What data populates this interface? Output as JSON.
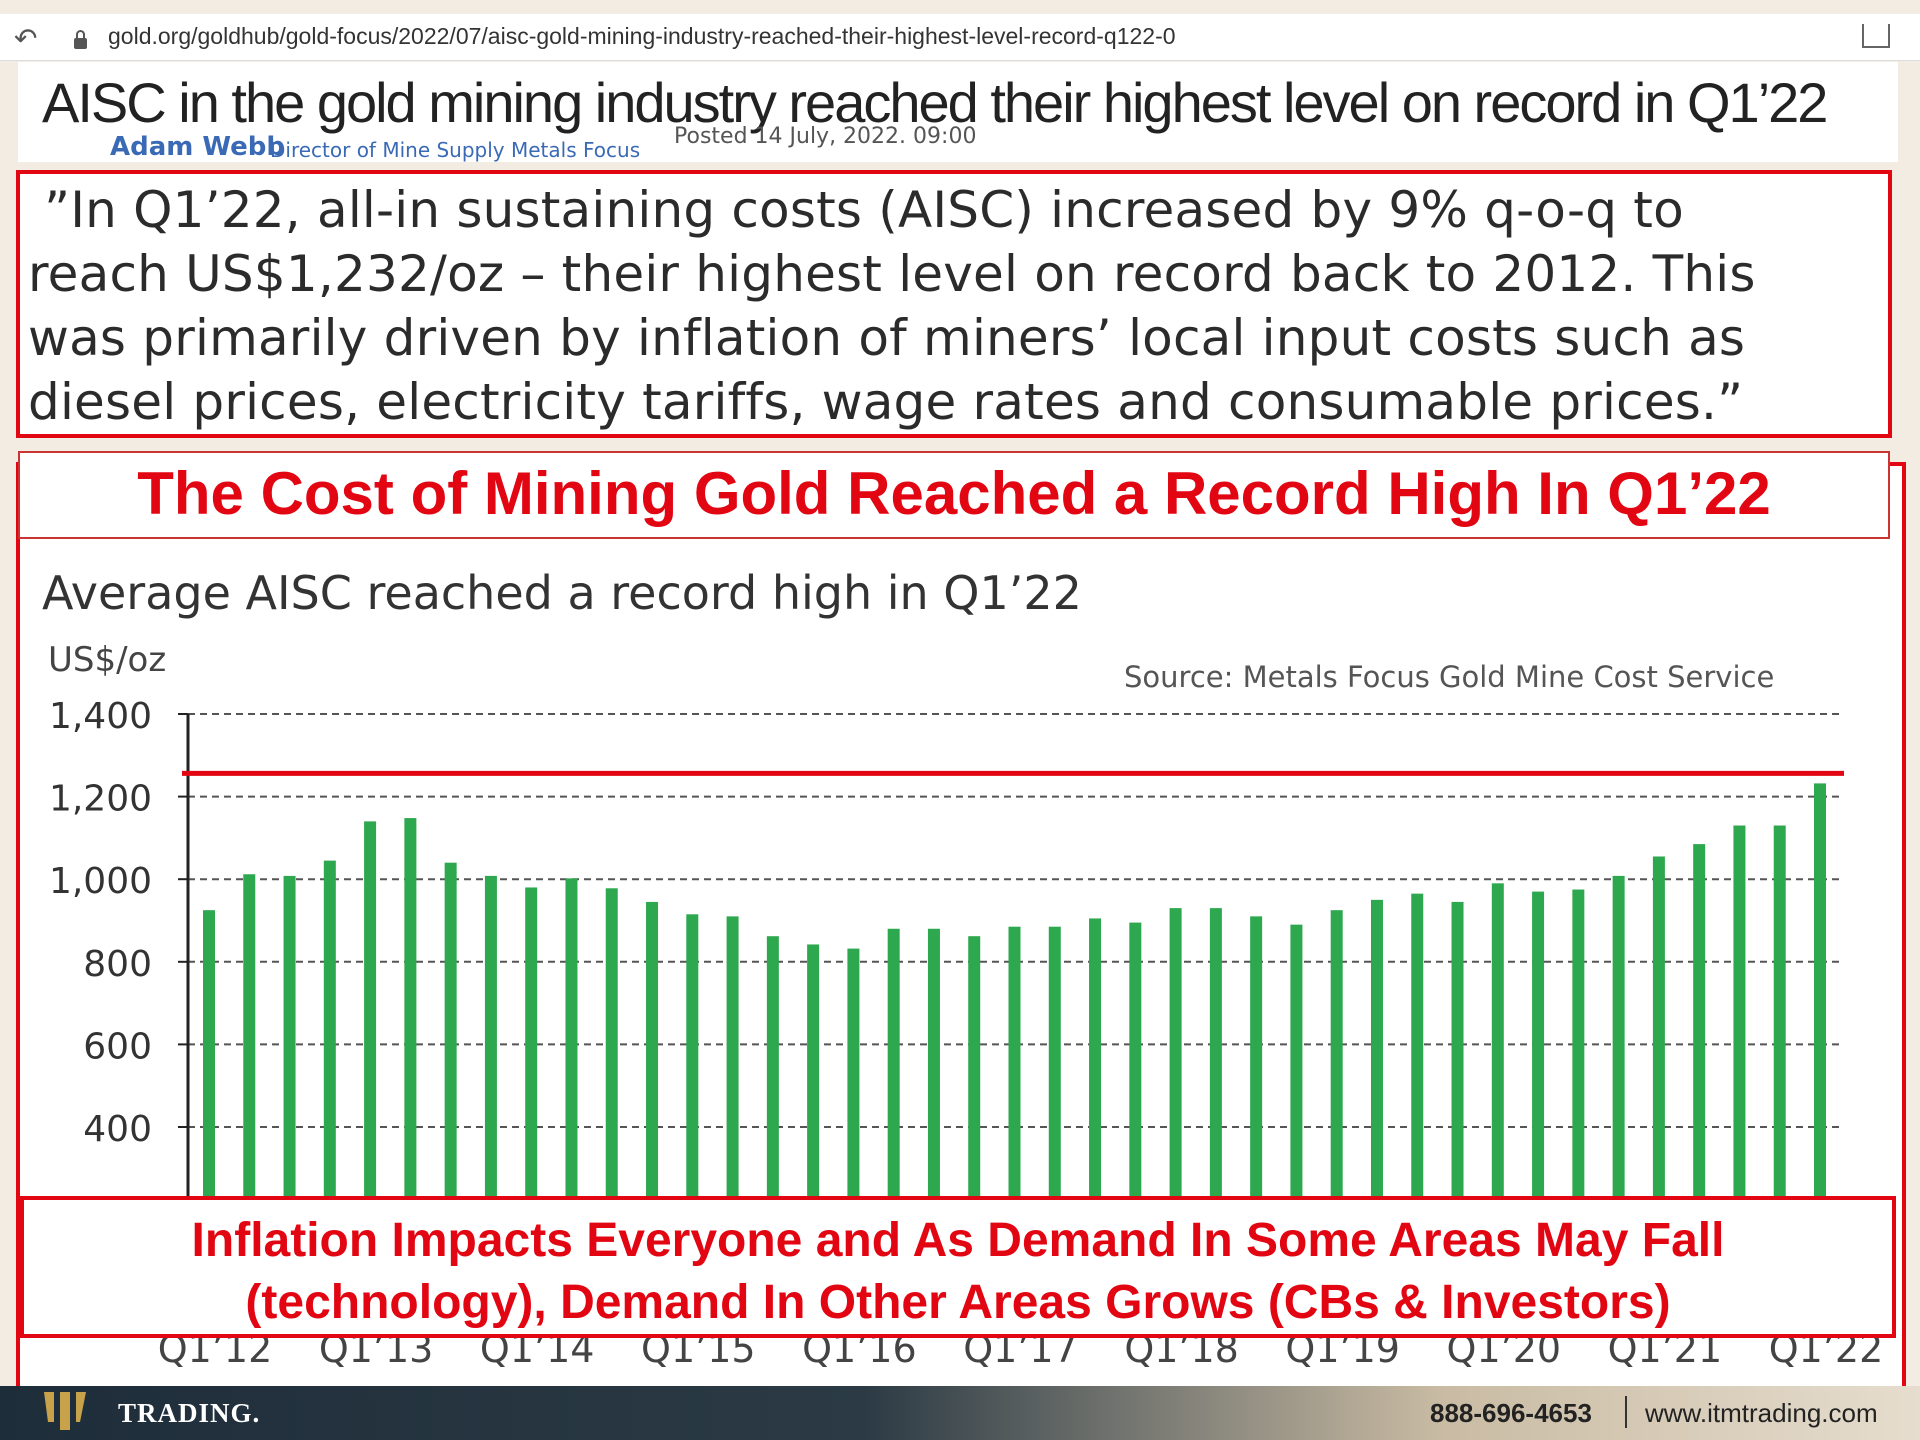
{
  "browser": {
    "url": "gold.org/goldhub/gold-focus/2022/07/aisc-gold-mining-industry-reached-their-highest-level-record-q122-0"
  },
  "article": {
    "title": "AISC in the gold mining industry reached their highest level on record in Q1’22",
    "author": "Adam Webb",
    "author_role": "Director of Mine Supply Metals Focus",
    "posted": "Posted 14 July, 2022. 09:00"
  },
  "quote": {
    "lines": [
      " ”In Q1’22, all-in sustaining costs (AISC) increased by 9% q-o-q to",
      "reach US$1,232/oz – their highest level on record back to 2012. This",
      "was primarily driven by inflation of miners’ local input costs such as",
      "diesel prices, electricity tariffs, wage rates and consumable prices.”"
    ]
  },
  "headline": "The Cost of Mining Gold Reached a Record High In Q1’22",
  "bottom_note": {
    "lines": [
      "Inflation Impacts Everyone and As Demand In Some Areas May Fall",
      "(technology), Demand In Other Areas Grows (CBs & Investors)"
    ]
  },
  "chart_data": {
    "type": "bar",
    "title": "Average AISC reached a record high in Q1’22",
    "ylabel": "US$/oz",
    "source": "Source: Metals Focus Gold Mine Cost Service",
    "ylim": [
      0,
      1400
    ],
    "yticks": [
      "1,400",
      "1,200",
      "1,000",
      "800",
      "600",
      "400"
    ],
    "ytick_values": [
      1400,
      1200,
      1000,
      800,
      600,
      400
    ],
    "grid": true,
    "bar_color": "#2ea84f",
    "highlight_line_value": 1232,
    "highlight_line_color": "#e20613",
    "categories": [
      "Q1'12",
      "Q2'12",
      "Q3'12",
      "Q4'12",
      "Q1'13",
      "Q2'13",
      "Q3'13",
      "Q4'13",
      "Q1'14",
      "Q2'14",
      "Q3'14",
      "Q4'14",
      "Q1'15",
      "Q2'15",
      "Q3'15",
      "Q4'15",
      "Q1'16",
      "Q2'16",
      "Q3'16",
      "Q4'16",
      "Q1'17",
      "Q2'17",
      "Q3'17",
      "Q4'17",
      "Q1'18",
      "Q2'18",
      "Q3'18",
      "Q4'18",
      "Q1'19",
      "Q2'19",
      "Q3'19",
      "Q4'19",
      "Q1'20",
      "Q2'20",
      "Q3'20",
      "Q4'20",
      "Q1'21",
      "Q2'21",
      "Q3'21",
      "Q4'21",
      "Q1'22"
    ],
    "values": [
      925,
      1012,
      1008,
      1045,
      1140,
      1148,
      1040,
      1008,
      980,
      1002,
      978,
      945,
      915,
      910,
      862,
      842,
      832,
      880,
      880,
      862,
      885,
      885,
      905,
      895,
      930,
      930,
      910,
      890,
      925,
      950,
      965,
      945,
      990,
      970,
      975,
      1008,
      1055,
      1085,
      1130,
      1130,
      1232
    ],
    "xtick_labels": [
      "Q1’12",
      "Q1’13",
      "Q1’14",
      "Q1’15",
      "Q1’16",
      "Q1’17",
      "Q1’18",
      "Q1’19",
      "Q1’20",
      "Q1’21",
      "Q1’22"
    ]
  },
  "footer": {
    "brand": "TRADING.",
    "phone": "888-696-4653",
    "site": "www.itmtrading.com",
    "bg_color": "#1e2d3a"
  }
}
